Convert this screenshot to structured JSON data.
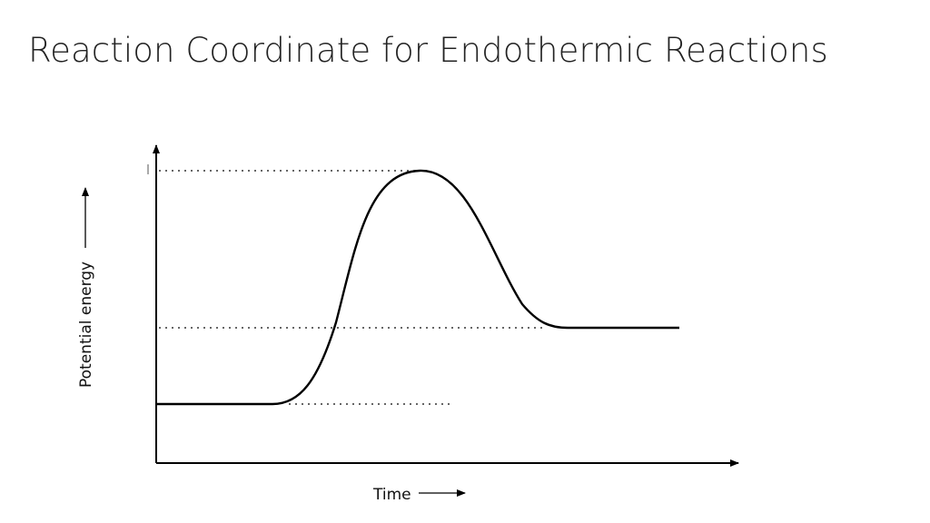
{
  "slide": {
    "title": "Reaction Coordinate for Endothermic Reactions"
  },
  "diagram": {
    "x_axis_label": "Time",
    "y_axis_label": "Potential energy",
    "levels": {
      "reactants": 0.2,
      "products": 0.46,
      "activated_complex": 1.0
    },
    "colors": {
      "curve": "#000000",
      "guides": "#333333"
    }
  }
}
